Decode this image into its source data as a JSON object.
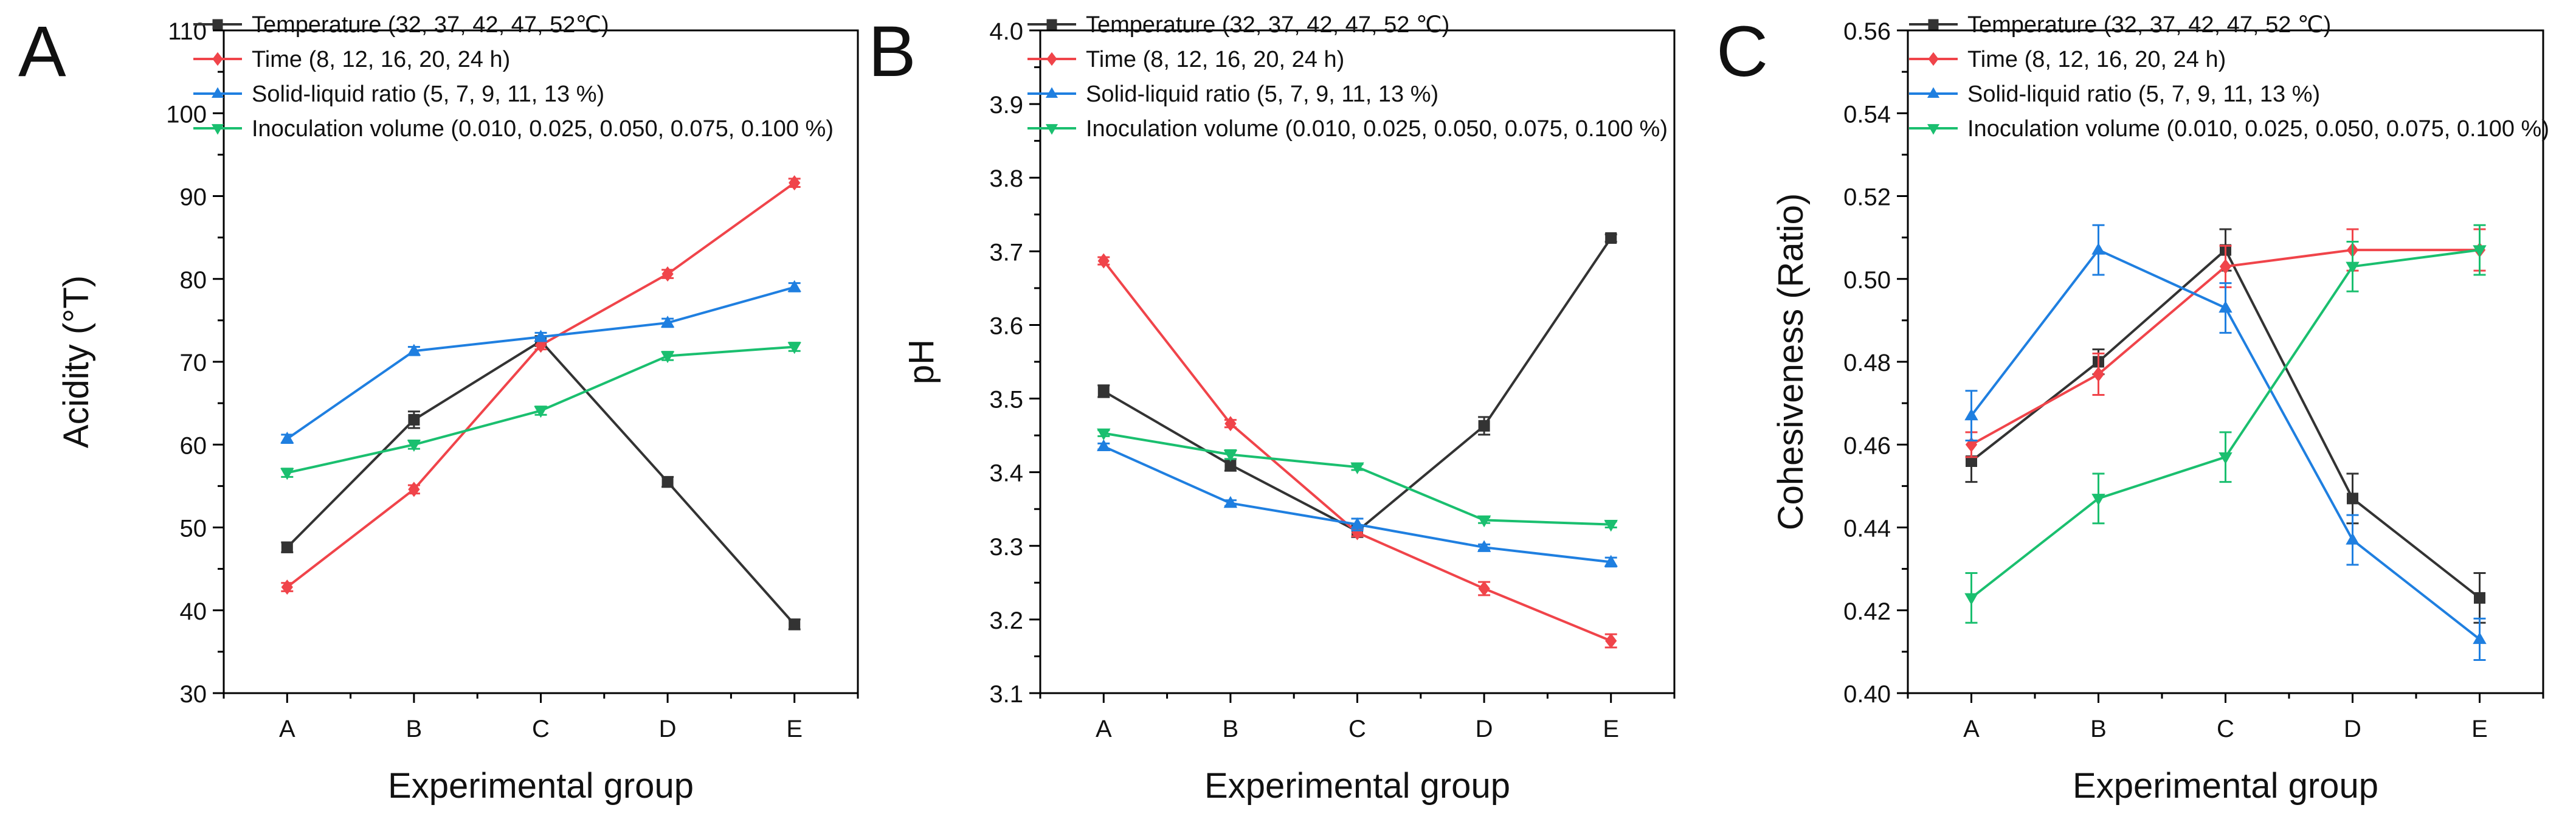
{
  "figure": {
    "background": "#ffffff",
    "axis_color": "#000000",
    "series_colors": [
      "#333333",
      "#f0444a",
      "#1f7fe0",
      "#1abf6f"
    ],
    "series_markers": [
      "square",
      "diamond",
      "triangle-up",
      "triangle-down"
    ]
  },
  "chart_data": [
    {
      "type": "line",
      "panel_label": "A",
      "title": "",
      "xlabel": "Experimental group",
      "ylabel": "Acidity (°T)",
      "categories": [
        "A",
        "B",
        "C",
        "D",
        "E"
      ],
      "ylim": [
        30,
        110
      ],
      "yticks": [
        30,
        40,
        50,
        60,
        70,
        80,
        90,
        100,
        110
      ],
      "ytick_labels": [
        "30",
        "40",
        "50",
        "60",
        "70",
        "80",
        "90",
        "100",
        "110"
      ],
      "grid": false,
      "legend_position": "top-left",
      "series": [
        {
          "name": "Temperature (32, 37, 42, 47, 52℃)",
          "values": [
            47.6,
            63.0,
            72.5,
            55.5,
            38.3
          ],
          "errors": [
            0.6,
            1.0,
            0.6,
            0.6,
            0.6
          ]
        },
        {
          "name": "Time (8, 12, 16, 20, 24 h)",
          "values": [
            42.8,
            54.6,
            72.0,
            80.6,
            91.6
          ],
          "errors": [
            0.5,
            0.5,
            0.5,
            0.5,
            0.5
          ]
        },
        {
          "name": "Solid-liquid ratio (5, 7, 9, 11, 13 %)",
          "values": [
            60.7,
            71.3,
            73.0,
            74.7,
            79.0
          ],
          "errors": [
            0.5,
            0.5,
            0.5,
            0.5,
            0.5
          ]
        },
        {
          "name": "Inoculation volume (0.010, 0.025, 0.050, 0.075, 0.100 %)",
          "values": [
            56.6,
            60.0,
            64.1,
            70.7,
            71.8
          ],
          "errors": [
            0.5,
            0.5,
            0.5,
            0.5,
            0.5
          ]
        }
      ]
    },
    {
      "type": "line",
      "panel_label": "B",
      "title": "",
      "xlabel": "Experimental group",
      "ylabel": "pH",
      "categories": [
        "A",
        "B",
        "C",
        "D",
        "E"
      ],
      "ylim": [
        3.1,
        4.0
      ],
      "yticks": [
        3.1,
        3.2,
        3.3,
        3.4,
        3.5,
        3.6,
        3.7,
        3.8,
        3.9,
        4.0
      ],
      "ytick_labels": [
        "3.1",
        "3.2",
        "3.3",
        "3.4",
        "3.5",
        "3.6",
        "3.7",
        "3.8",
        "3.9",
        "4.0"
      ],
      "grid": false,
      "legend_position": "top-left",
      "series": [
        {
          "name": "Temperature (32, 37, 42, 47, 52 ℃)",
          "values": [
            3.51,
            3.41,
            3.32,
            3.463,
            3.718
          ],
          "errors": [
            0.008,
            0.008,
            0.008,
            0.012,
            0.005
          ]
        },
        {
          "name": "Time (8, 12, 16, 20, 24 h)",
          "values": [
            3.687,
            3.466,
            3.318,
            3.242,
            3.171
          ],
          "errors": [
            0.005,
            0.005,
            0.005,
            0.009,
            0.009
          ]
        },
        {
          "name": "Solid-liquid ratio (5, 7, 9, 11, 13 %)",
          "values": [
            3.435,
            3.358,
            3.329,
            3.298,
            3.278
          ],
          "errors": [
            0.004,
            0.004,
            0.008,
            0.004,
            0.006
          ]
        },
        {
          "name": "Inoculation volume (0.010, 0.025, 0.050, 0.075, 0.100 %)",
          "values": [
            3.453,
            3.424,
            3.407,
            3.335,
            3.329
          ],
          "errors": [
            0.004,
            0.006,
            0.004,
            0.004,
            0.004
          ]
        }
      ]
    },
    {
      "type": "line",
      "panel_label": "C",
      "title": "",
      "xlabel": "Experimental group",
      "ylabel": "Cohesiveness (Ratio)",
      "categories": [
        "A",
        "B",
        "C",
        "D",
        "E"
      ],
      "ylim": [
        0.4,
        0.56
      ],
      "yticks": [
        0.4,
        0.42,
        0.44,
        0.46,
        0.48,
        0.5,
        0.52,
        0.54,
        0.56
      ],
      "ytick_labels": [
        "0.40",
        "0.42",
        "0.44",
        "0.46",
        "0.48",
        "0.50",
        "0.52",
        "0.54",
        "0.56"
      ],
      "grid": false,
      "legend_position": "top-left",
      "series": [
        {
          "name": "Temperature (32, 37, 42, 47, 52 ℃)",
          "values": [
            0.456,
            0.48,
            0.507,
            0.447,
            0.423
          ],
          "errors": [
            0.005,
            0.003,
            0.005,
            0.006,
            0.006
          ]
        },
        {
          "name": "Time (8, 12, 16, 20, 24 h)",
          "values": [
            0.46,
            0.477,
            0.503,
            0.507,
            0.507
          ],
          "errors": [
            0.003,
            0.005,
            0.005,
            0.005,
            0.005
          ]
        },
        {
          "name": "Solid-liquid ratio (5, 7, 9, 11, 13 %)",
          "values": [
            0.467,
            0.507,
            0.493,
            0.437,
            0.413
          ],
          "errors": [
            0.006,
            0.006,
            0.006,
            0.006,
            0.005
          ]
        },
        {
          "name": "Inoculation volume (0.010, 0.025, 0.050, 0.075, 0.100 %)",
          "values": [
            0.423,
            0.447,
            0.457,
            0.503,
            0.507
          ],
          "errors": [
            0.006,
            0.006,
            0.006,
            0.006,
            0.006
          ]
        }
      ]
    }
  ]
}
